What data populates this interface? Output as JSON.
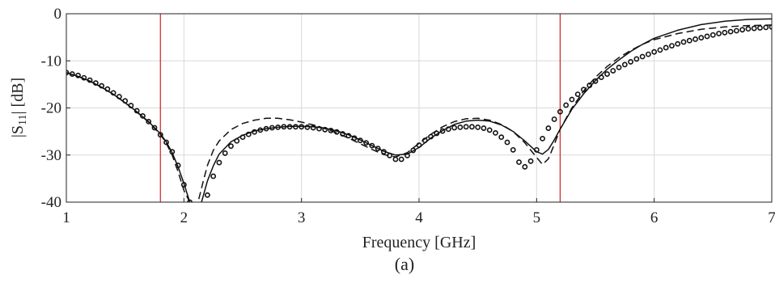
{
  "chart_data": {
    "type": "line",
    "caption": "(a)",
    "xlabel": "Frequency [GHz]",
    "ylabel": {
      "prefix": "|S",
      "sub": "11",
      "suffix": "| [dB]"
    },
    "xlim": [
      1,
      7
    ],
    "ylim": [
      -40,
      0
    ],
    "xticks": [
      1,
      2,
      3,
      4,
      5,
      6,
      7
    ],
    "yticks": [
      0,
      -10,
      -20,
      -30,
      -40
    ],
    "grid": true,
    "vertical_markers": {
      "x": [
        1.8,
        5.2
      ],
      "color": "#cc2222"
    },
    "series": [
      {
        "style": "solid",
        "color": "#111111",
        "x": [
          1.0,
          1.1,
          1.2,
          1.3,
          1.4,
          1.5,
          1.6,
          1.7,
          1.8,
          1.85,
          1.9,
          1.95,
          2.0,
          2.05,
          2.1,
          2.15,
          2.2,
          2.25,
          2.3,
          2.4,
          2.5,
          2.6,
          2.7,
          2.8,
          2.9,
          3.0,
          3.1,
          3.2,
          3.3,
          3.4,
          3.5,
          3.6,
          3.7,
          3.8,
          3.9,
          4.0,
          4.1,
          4.2,
          4.3,
          4.4,
          4.5,
          4.6,
          4.7,
          4.8,
          4.9,
          5.0,
          5.05,
          5.1,
          5.15,
          5.2,
          5.3,
          5.4,
          5.5,
          5.6,
          5.7,
          5.8,
          5.9,
          6.0,
          6.2,
          6.4,
          6.6,
          6.8,
          7.0
        ],
        "y": [
          -12.5,
          -13.3,
          -14.3,
          -15.6,
          -17.1,
          -18.9,
          -20.8,
          -22.9,
          -25.5,
          -27.2,
          -29.5,
          -32.5,
          -36.0,
          -40.0,
          -42.0,
          -40.0,
          -35.5,
          -32.3,
          -29.8,
          -27.2,
          -25.8,
          -24.9,
          -24.4,
          -24.1,
          -23.9,
          -23.9,
          -24.0,
          -24.3,
          -24.9,
          -25.7,
          -26.8,
          -28.0,
          -29.2,
          -30.0,
          -29.8,
          -28.4,
          -26.4,
          -24.8,
          -23.5,
          -22.8,
          -22.6,
          -22.8,
          -23.6,
          -25.0,
          -27.0,
          -29.3,
          -29.8,
          -28.8,
          -26.8,
          -24.5,
          -20.3,
          -17.0,
          -14.2,
          -11.8,
          -9.8,
          -8.0,
          -6.5,
          -5.2,
          -3.5,
          -2.3,
          -1.6,
          -1.2,
          -1.1
        ]
      },
      {
        "style": "dashed",
        "color": "#111111",
        "x": [
          1.0,
          1.1,
          1.2,
          1.3,
          1.4,
          1.5,
          1.6,
          1.7,
          1.8,
          1.85,
          1.9,
          1.95,
          2.0,
          2.05,
          2.08,
          2.12,
          2.16,
          2.2,
          2.25,
          2.3,
          2.4,
          2.5,
          2.6,
          2.7,
          2.8,
          2.9,
          3.0,
          3.1,
          3.2,
          3.3,
          3.4,
          3.5,
          3.6,
          3.7,
          3.8,
          3.9,
          4.0,
          4.1,
          4.2,
          4.3,
          4.4,
          4.5,
          4.6,
          4.7,
          4.8,
          4.9,
          5.0,
          5.05,
          5.1,
          5.15,
          5.2,
          5.3,
          5.4,
          5.5,
          5.6,
          5.7,
          5.8,
          5.9,
          6.0,
          6.2,
          6.4,
          6.6,
          6.8,
          7.0
        ],
        "y": [
          -12.5,
          -13.3,
          -14.3,
          -15.6,
          -17.1,
          -18.9,
          -20.9,
          -23.0,
          -25.6,
          -27.5,
          -30.0,
          -33.5,
          -37.5,
          -40.0,
          -41.0,
          -40.0,
          -36.0,
          -32.2,
          -29.0,
          -27.0,
          -24.6,
          -23.3,
          -22.6,
          -22.2,
          -22.2,
          -22.5,
          -23.0,
          -23.6,
          -24.4,
          -25.3,
          -26.4,
          -27.6,
          -28.8,
          -29.9,
          -30.4,
          -29.5,
          -27.5,
          -25.6,
          -24.0,
          -22.9,
          -22.3,
          -22.2,
          -22.6,
          -23.5,
          -25.0,
          -27.4,
          -30.5,
          -32.0,
          -30.8,
          -27.8,
          -24.5,
          -20.0,
          -16.4,
          -13.5,
          -11.2,
          -9.3,
          -7.8,
          -6.5,
          -5.5,
          -4.2,
          -3.3,
          -2.8,
          -2.5,
          -2.4
        ]
      },
      {
        "style": "circles",
        "color": "#111111",
        "x": [
          1.0,
          1.05,
          1.1,
          1.15,
          1.2,
          1.25,
          1.3,
          1.35,
          1.4,
          1.45,
          1.5,
          1.55,
          1.6,
          1.65,
          1.7,
          1.75,
          1.8,
          1.85,
          1.9,
          1.95,
          2.0,
          2.05,
          2.2,
          2.25,
          2.3,
          2.35,
          2.4,
          2.45,
          2.5,
          2.55,
          2.6,
          2.65,
          2.7,
          2.75,
          2.8,
          2.85,
          2.9,
          2.95,
          3.0,
          3.05,
          3.1,
          3.15,
          3.2,
          3.25,
          3.3,
          3.35,
          3.4,
          3.45,
          3.5,
          3.55,
          3.6,
          3.65,
          3.7,
          3.75,
          3.8,
          3.85,
          3.9,
          3.95,
          4.0,
          4.05,
          4.1,
          4.15,
          4.2,
          4.25,
          4.3,
          4.35,
          4.4,
          4.45,
          4.5,
          4.55,
          4.6,
          4.65,
          4.7,
          4.75,
          4.8,
          4.85,
          4.9,
          4.95,
          5.0,
          5.05,
          5.1,
          5.15,
          5.2,
          5.25,
          5.3,
          5.35,
          5.4,
          5.45,
          5.5,
          5.55,
          5.6,
          5.65,
          5.7,
          5.75,
          5.8,
          5.85,
          5.9,
          5.95,
          6.0,
          6.05,
          6.1,
          6.15,
          6.2,
          6.25,
          6.3,
          6.35,
          6.4,
          6.45,
          6.5,
          6.55,
          6.6,
          6.65,
          6.7,
          6.75,
          6.8,
          6.85,
          6.9,
          6.95,
          7.0
        ],
        "y": [
          -12.5,
          -12.8,
          -13.1,
          -13.6,
          -14.1,
          -14.7,
          -15.3,
          -16.0,
          -16.8,
          -17.6,
          -18.5,
          -19.5,
          -20.6,
          -21.7,
          -22.9,
          -24.2,
          -25.7,
          -27.3,
          -29.3,
          -32.2,
          -36.3,
          -40.0,
          -38.5,
          -34.5,
          -31.6,
          -29.6,
          -28.1,
          -27.0,
          -26.2,
          -25.6,
          -25.1,
          -24.7,
          -24.4,
          -24.2,
          -24.1,
          -24.0,
          -24.0,
          -24.0,
          -24.0,
          -24.1,
          -24.2,
          -24.4,
          -24.6,
          -24.8,
          -25.1,
          -25.5,
          -25.9,
          -26.4,
          -26.9,
          -27.4,
          -28.0,
          -28.6,
          -29.3,
          -30.1,
          -30.9,
          -30.9,
          -30.1,
          -29.0,
          -27.9,
          -26.9,
          -26.1,
          -25.4,
          -24.9,
          -24.5,
          -24.2,
          -24.1,
          -24.0,
          -24.0,
          -24.1,
          -24.3,
          -24.7,
          -25.3,
          -26.2,
          -27.3,
          -28.9,
          -31.5,
          -32.5,
          -31.3,
          -28.9,
          -26.5,
          -24.3,
          -22.4,
          -20.8,
          -19.4,
          -18.2,
          -17.1,
          -16.1,
          -15.2,
          -14.3,
          -13.5,
          -12.8,
          -12.1,
          -11.4,
          -10.8,
          -10.2,
          -9.6,
          -9.1,
          -8.6,
          -8.1,
          -7.7,
          -7.2,
          -6.8,
          -6.4,
          -6.0,
          -5.7,
          -5.4,
          -5.1,
          -4.8,
          -4.5,
          -4.2,
          -4.0,
          -3.8,
          -3.6,
          -3.4,
          -3.2,
          -3.1,
          -3.0,
          -2.9,
          -2.8
        ]
      }
    ]
  }
}
